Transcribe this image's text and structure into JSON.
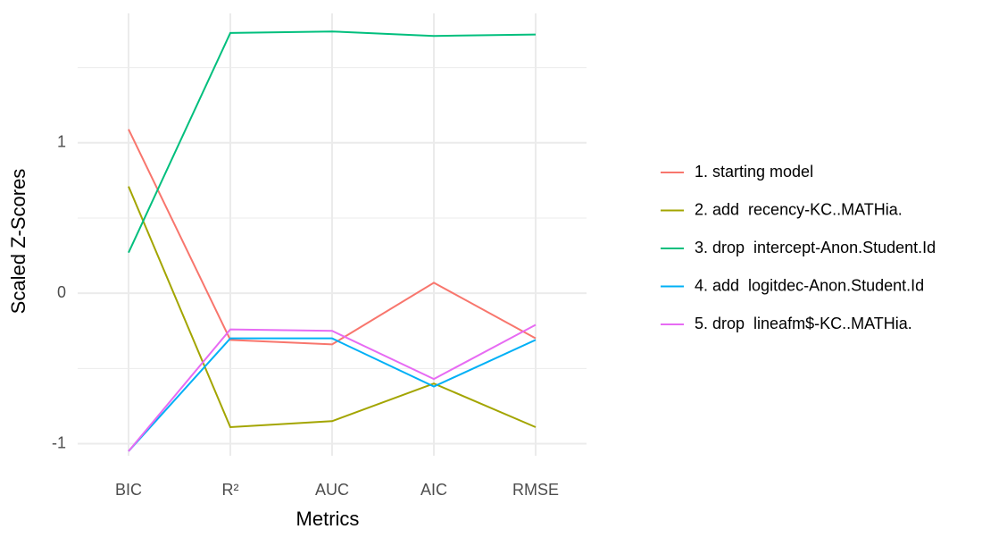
{
  "chart_data": {
    "type": "line",
    "x_label": "Metrics",
    "y_label": "Scaled Z-Scores",
    "categories": [
      "BIC",
      "R²",
      "AUC",
      "AIC",
      "RMSE"
    ],
    "series": [
      {
        "name": "1. starting model",
        "color": "#F8766D",
        "values": [
          1.09,
          -0.31,
          -0.34,
          0.07,
          -0.3
        ]
      },
      {
        "name": "2. add  recency-KC..MATHia.",
        "color": "#A3A500",
        "values": [
          0.71,
          -0.89,
          -0.85,
          -0.6,
          -0.89
        ]
      },
      {
        "name": "3. drop  intercept-Anon.Student.Id",
        "color": "#00BF7D",
        "values": [
          0.27,
          1.73,
          1.74,
          1.71,
          1.72
        ]
      },
      {
        "name": "4. add  logitdec-Anon.Student.Id",
        "color": "#00B0F6",
        "values": [
          -1.05,
          -0.3,
          -0.3,
          -0.62,
          -0.31
        ]
      },
      {
        "name": "5. drop  lineafm$-KC..MATHia.",
        "color": "#E76BF3",
        "values": [
          -1.05,
          -0.24,
          -0.25,
          -0.57,
          -0.21
        ]
      }
    ],
    "ylim": [
      -1.08,
      1.86
    ],
    "yticks": [
      -1,
      0,
      1
    ],
    "grid": true,
    "minor_grid": true,
    "legend": "right"
  }
}
